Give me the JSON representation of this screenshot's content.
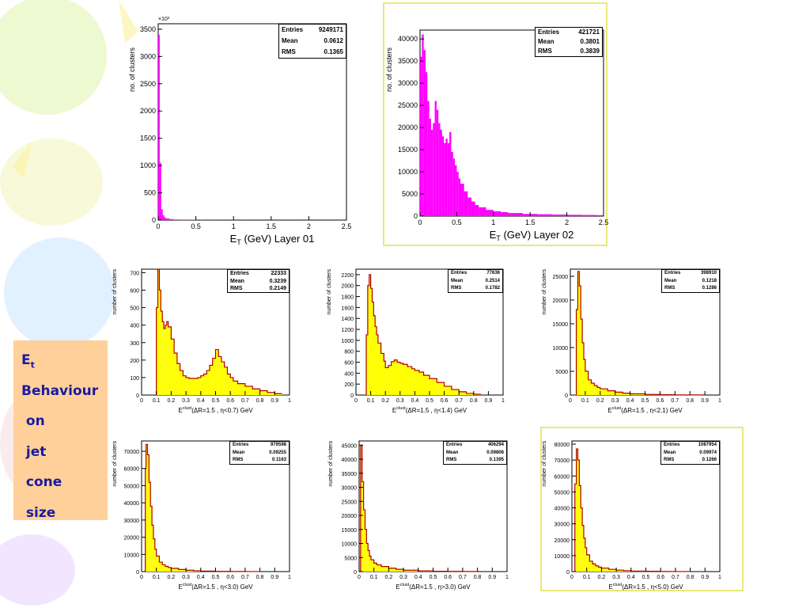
{
  "side_label": {
    "title_main": "E",
    "title_sub": "t",
    "lines": [
      "Behaviour",
      " on",
      " jet",
      " cone",
      " size"
    ]
  },
  "colors": {
    "magenta": "#ff00ff",
    "yellow": "#ffff00",
    "outline": "#b00000",
    "frame": "#e8e87a",
    "label_bg": "#ffd09a",
    "label_text": "#1a1aa0"
  },
  "chart_data": [
    {
      "id": "c1",
      "type": "bar",
      "color": "magenta",
      "ylabel": "no. of clusters",
      "xlabel": "E_T (GeV) Layer 01",
      "exponent": "×10³",
      "xlim": [
        0,
        2.5
      ],
      "ylim": [
        0,
        3600
      ],
      "xticks": [
        "0",
        "0.5",
        "1",
        "1.5",
        "2",
        "2.5"
      ],
      "yticks": [
        "0",
        "500",
        "1000",
        "1500",
        "2000",
        "2500",
        "3000",
        "3500"
      ],
      "stats": [
        [
          "Entries",
          "9249171"
        ],
        [
          "Mean",
          "0.0612"
        ],
        [
          "RMS",
          "0.1365"
        ]
      ],
      "x": [
        0.0,
        0.02,
        0.04,
        0.06,
        0.08,
        0.1,
        0.15,
        0.2,
        0.3,
        0.5,
        0.8,
        1.2,
        1.8,
        2.4
      ],
      "values": [
        3400,
        1050,
        200,
        90,
        50,
        30,
        18,
        10,
        5,
        2,
        1,
        0.5,
        0.2,
        0.1
      ]
    },
    {
      "id": "c2",
      "type": "bar",
      "color": "magenta",
      "ylabel": "no. of clusters",
      "xlabel": "E_T (GeV) Layer 02",
      "exponent": "",
      "xlim": [
        0,
        2.5
      ],
      "ylim": [
        0,
        42000
      ],
      "xticks": [
        "0",
        "0.5",
        "1",
        "1.5",
        "2",
        "2.5"
      ],
      "yticks": [
        "0",
        "5000",
        "10000",
        "15000",
        "20000",
        "25000",
        "30000",
        "35000",
        "40000"
      ],
      "stats": [
        [
          "Entries",
          "421721"
        ],
        [
          "Mean",
          "0.3801"
        ],
        [
          "RMS",
          "0.3839"
        ]
      ],
      "x": [
        0.0,
        0.025,
        0.05,
        0.075,
        0.1,
        0.125,
        0.15,
        0.175,
        0.2,
        0.225,
        0.25,
        0.275,
        0.3,
        0.325,
        0.35,
        0.375,
        0.4,
        0.425,
        0.45,
        0.475,
        0.5,
        0.525,
        0.55,
        0.6,
        0.65,
        0.7,
        0.75,
        0.8,
        0.9,
        1.0,
        1.1,
        1.2,
        1.4,
        1.6,
        1.8,
        2.0,
        2.2,
        2.4
      ],
      "values": [
        36000,
        41000,
        37500,
        32500,
        26000,
        22000,
        19500,
        21000,
        26000,
        24000,
        21000,
        19500,
        18000,
        16500,
        17500,
        16500,
        19000,
        14500,
        13000,
        11500,
        10000,
        8500,
        7300,
        5600,
        4200,
        3300,
        2500,
        2000,
        1400,
        1100,
        900,
        700,
        500,
        420,
        350,
        300,
        260,
        220
      ]
    },
    {
      "id": "c3",
      "type": "bar",
      "color": "yellow",
      "ylabel": "number of clusters",
      "xlabel": "E_t^clust(ΔR=1.5 , η<0.7) GeV",
      "exponent": "",
      "xlim": [
        0,
        1
      ],
      "ylim": [
        0,
        720
      ],
      "xticks": [
        "0",
        "0.1",
        "0.2",
        "0.3",
        "0.4",
        "0.5",
        "0.6",
        "0.7",
        "0.8",
        "0.9",
        "1"
      ],
      "yticks": [
        "0",
        "100",
        "200",
        "300",
        "400",
        "500",
        "600",
        "700"
      ],
      "stats": [
        [
          "Entries",
          "22333"
        ],
        [
          "Mean",
          "0.3239"
        ],
        [
          "RMS",
          "0.2149"
        ]
      ],
      "x": [
        0.09,
        0.1,
        0.11,
        0.12,
        0.13,
        0.14,
        0.15,
        0.16,
        0.17,
        0.18,
        0.2,
        0.22,
        0.24,
        0.26,
        0.28,
        0.3,
        0.32,
        0.35,
        0.38,
        0.4,
        0.42,
        0.44,
        0.46,
        0.48,
        0.5,
        0.52,
        0.54,
        0.56,
        0.58,
        0.6,
        0.62,
        0.65,
        0.7,
        0.75,
        0.8,
        0.85,
        0.9
      ],
      "values": [
        0,
        500,
        730,
        600,
        480,
        420,
        380,
        400,
        420,
        390,
        320,
        240,
        180,
        140,
        110,
        100,
        95,
        95,
        100,
        110,
        120,
        140,
        170,
        210,
        260,
        220,
        190,
        160,
        120,
        100,
        80,
        65,
        50,
        35,
        25,
        15,
        8
      ]
    },
    {
      "id": "c4",
      "type": "bar",
      "color": "yellow",
      "ylabel": "number of clusters",
      "xlabel": "E_t^clust(ΔR=1.5 , η<1.4) GeV",
      "exponent": "",
      "xlim": [
        0,
        1
      ],
      "ylim": [
        0,
        2300
      ],
      "xticks": [
        "0",
        "0.1",
        "0.2",
        "0.3",
        "0.4",
        "0.5",
        "0.6",
        "0.7",
        "0.8",
        "0.9",
        "1"
      ],
      "yticks": [
        "0",
        "200",
        "400",
        "600",
        "800",
        "1000",
        "1200",
        "1400",
        "1600",
        "1800",
        "2000",
        "2200"
      ],
      "stats": [
        [
          "Entries",
          "77636"
        ],
        [
          "Mean",
          "0.2514"
        ],
        [
          "RMS",
          "0.1782"
        ]
      ],
      "x": [
        0.06,
        0.07,
        0.08,
        0.09,
        0.1,
        0.11,
        0.12,
        0.13,
        0.14,
        0.15,
        0.17,
        0.19,
        0.2,
        0.22,
        0.24,
        0.26,
        0.28,
        0.3,
        0.32,
        0.35,
        0.38,
        0.4,
        0.43,
        0.46,
        0.5,
        0.55,
        0.6,
        0.65,
        0.7,
        0.75,
        0.8
      ],
      "values": [
        0,
        1100,
        2000,
        2200,
        1950,
        1700,
        1450,
        1250,
        1100,
        950,
        760,
        620,
        500,
        540,
        610,
        640,
        600,
        580,
        560,
        520,
        480,
        450,
        420,
        360,
        300,
        230,
        160,
        100,
        60,
        30,
        15
      ]
    },
    {
      "id": "c5",
      "type": "bar",
      "color": "yellow",
      "ylabel": "number of clusters",
      "xlabel": "E_t^clust(ΔR=1.5 , η<2.1) GeV",
      "exponent": "",
      "xlim": [
        0,
        1
      ],
      "ylim": [
        0,
        26500
      ],
      "xticks": [
        "0",
        "0.1",
        "0.2",
        "0.3",
        "0.4",
        "0.5",
        "0.6",
        "0.7",
        "0.8",
        "0.9",
        "1"
      ],
      "yticks": [
        "0",
        "5000",
        "10000",
        "15000",
        "20000",
        "25000"
      ],
      "stats": [
        [
          "Entries",
          "398910"
        ],
        [
          "Mean",
          "0.1218"
        ],
        [
          "RMS",
          "0.1286"
        ]
      ],
      "x": [
        0.03,
        0.04,
        0.05,
        0.06,
        0.07,
        0.08,
        0.09,
        0.1,
        0.12,
        0.14,
        0.16,
        0.18,
        0.2,
        0.25,
        0.3,
        0.35,
        0.4,
        0.5,
        0.6,
        0.7,
        0.8
      ],
      "values": [
        0,
        18000,
        26000,
        23000,
        16000,
        11000,
        7500,
        5000,
        3200,
        2500,
        2000,
        1600,
        1300,
        900,
        600,
        400,
        250,
        120,
        60,
        30,
        15
      ]
    },
    {
      "id": "c6",
      "type": "bar",
      "color": "yellow",
      "ylabel": "number of clusters",
      "xlabel": "E_t^clust(ΔR=1.5 , η<3.0) GeV",
      "exponent": "",
      "xlim": [
        0,
        1
      ],
      "ylim": [
        0,
        76000
      ],
      "xticks": [
        "0",
        "0.1",
        "0.2",
        "0.3",
        "0.4",
        "0.5",
        "0.6",
        "0.7",
        "0.8",
        "0.9",
        "1"
      ],
      "yticks": [
        "0",
        "10000",
        "20000",
        "30000",
        "40000",
        "50000",
        "60000",
        "70000"
      ],
      "stats": [
        [
          "Entries",
          "979598"
        ],
        [
          "Mean",
          "0.09255"
        ],
        [
          "RMS",
          "0.1163"
        ]
      ],
      "x": [
        0.02,
        0.025,
        0.03,
        0.04,
        0.05,
        0.06,
        0.07,
        0.08,
        0.09,
        0.1,
        0.12,
        0.14,
        0.16,
        0.18,
        0.2,
        0.25,
        0.3,
        0.35,
        0.4,
        0.5,
        0.6,
        0.7
      ],
      "values": [
        0,
        60000,
        74000,
        68000,
        52000,
        38000,
        27000,
        19000,
        13000,
        9000,
        5500,
        4000,
        3000,
        2400,
        1900,
        1200,
        800,
        500,
        300,
        150,
        70,
        30
      ]
    },
    {
      "id": "c7",
      "type": "bar",
      "color": "yellow",
      "ylabel": "number of clusters",
      "xlabel": "E_t^clust(ΔR=1.5 , η>3.0) GeV",
      "exponent": "",
      "xlim": [
        0,
        1
      ],
      "ylim": [
        0,
        46500
      ],
      "xticks": [
        "0",
        "0.1",
        "0.2",
        "0.3",
        "0.4",
        "0.5",
        "0.6",
        "0.7",
        "0.8",
        "0.9",
        "1"
      ],
      "yticks": [
        "0",
        "5000",
        "10000",
        "15000",
        "20000",
        "25000",
        "30000",
        "35000",
        "40000",
        "45000"
      ],
      "stats": [
        [
          "Entries",
          "406294"
        ],
        [
          "Mean",
          "0.09806"
        ],
        [
          "RMS",
          "0.1395"
        ]
      ],
      "x": [
        0.0,
        0.01,
        0.02,
        0.03,
        0.04,
        0.05,
        0.06,
        0.07,
        0.08,
        0.1,
        0.12,
        0.15,
        0.2,
        0.25,
        0.3,
        0.4,
        0.5,
        0.6,
        0.7
      ],
      "values": [
        0,
        45000,
        32000,
        22000,
        15000,
        10000,
        7500,
        5500,
        4200,
        3000,
        2400,
        1800,
        1200,
        800,
        500,
        250,
        120,
        60,
        30
      ]
    },
    {
      "id": "c8",
      "type": "bar",
      "color": "yellow",
      "ylabel": "number of clusters",
      "xlabel": "E_t^clust(ΔR=1.5 , η<5.0) GeV",
      "exponent": "",
      "xlim": [
        0,
        1
      ],
      "ylim": [
        0,
        82000
      ],
      "xticks": [
        "0",
        "0.1",
        "0.2",
        "0.3",
        "0.4",
        "0.5",
        "0.6",
        "0.7",
        "0.8",
        "0.9",
        "1"
      ],
      "yticks": [
        "0",
        "10000",
        "20000",
        "30000",
        "40000",
        "50000",
        "60000",
        "70000",
        "80000"
      ],
      "stats": [
        [
          "Entries",
          "1087954"
        ],
        [
          "Mean",
          "0.09974"
        ],
        [
          "RMS",
          "0.1266"
        ]
      ],
      "x": [
        0.015,
        0.02,
        0.03,
        0.04,
        0.05,
        0.06,
        0.07,
        0.08,
        0.09,
        0.1,
        0.12,
        0.14,
        0.16,
        0.18,
        0.2,
        0.25,
        0.3,
        0.35,
        0.4,
        0.5,
        0.6,
        0.7
      ],
      "values": [
        0,
        55000,
        77000,
        70000,
        54000,
        40000,
        29000,
        21000,
        15000,
        10500,
        6500,
        4800,
        3600,
        2800,
        2200,
        1400,
        900,
        600,
        350,
        170,
        80,
        35
      ]
    }
  ]
}
